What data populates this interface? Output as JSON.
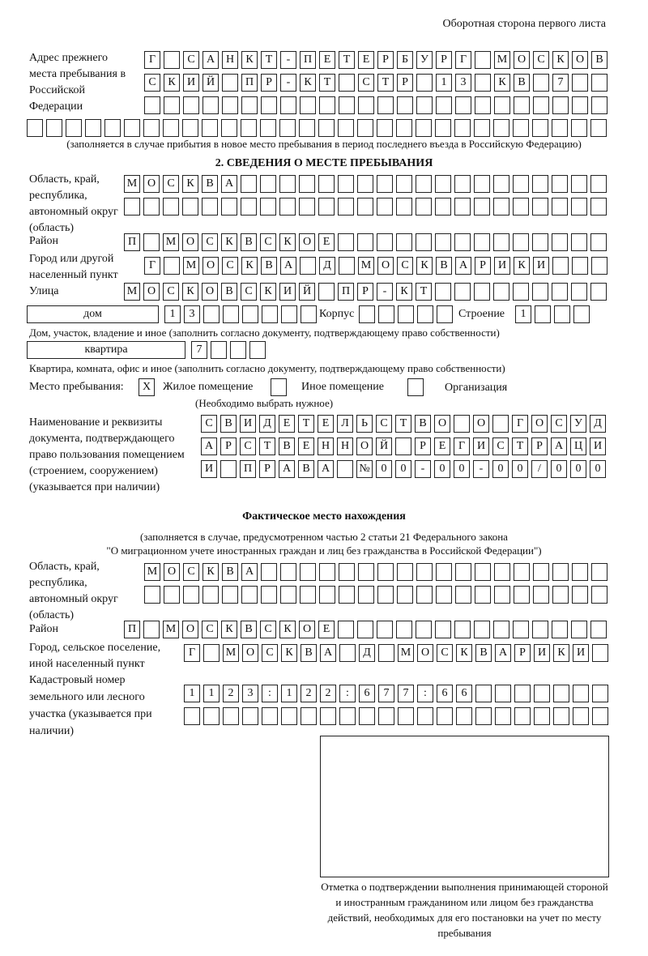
{
  "header": "Оборотная сторона первого листа",
  "prev_address": {
    "label": "Адрес прежнего места пребывания в Российской Федерации",
    "rows": [
      [
        "Г",
        "",
        "С",
        "А",
        "Н",
        "К",
        "Т",
        "-",
        "П",
        "Е",
        "Т",
        "Е",
        "Р",
        "Б",
        "У",
        "Р",
        "Г",
        "",
        "М",
        "О",
        "С",
        "К",
        "О",
        "В"
      ],
      [
        "С",
        "К",
        "И",
        "Й",
        "",
        "П",
        "Р",
        "-",
        "К",
        "Т",
        "",
        "С",
        "Т",
        "Р",
        "",
        "1",
        "3",
        "",
        "К",
        "В",
        "",
        "7",
        "",
        ""
      ],
      [
        "",
        "",
        "",
        "",
        "",
        "",
        "",
        "",
        "",
        "",
        "",
        "",
        "",
        "",
        "",
        "",
        "",
        "",
        "",
        "",
        "",
        "",
        "",
        ""
      ],
      [
        "",
        "",
        "",
        "",
        "",
        "",
        "",
        "",
        "",
        "",
        "",
        "",
        "",
        "",
        "",
        "",
        "",
        "",
        "",
        "",
        "",
        "",
        "",
        "",
        "",
        "",
        "",
        "",
        "",
        ""
      ]
    ],
    "note": "(заполняется в случае прибытия в новое место пребывания в период последнего въезда в Российскую Федерацию)"
  },
  "section2": {
    "title": "2. СВЕДЕНИЯ О МЕСТЕ ПРЕБЫВАНИЯ",
    "region_label": "Область, край, республика, автономный округ (область)",
    "region_rows": [
      [
        "М",
        "О",
        "С",
        "К",
        "В",
        "А",
        "",
        "",
        "",
        "",
        "",
        "",
        "",
        "",
        "",
        "",
        "",
        "",
        "",
        "",
        "",
        "",
        "",
        "",
        ""
      ],
      [
        "",
        "",
        "",
        "",
        "",
        "",
        "",
        "",
        "",
        "",
        "",
        "",
        "",
        "",
        "",
        "",
        "",
        "",
        "",
        "",
        "",
        "",
        "",
        "",
        ""
      ]
    ],
    "district_label": "Район",
    "district": [
      "П",
      "",
      "М",
      "О",
      "С",
      "К",
      "В",
      "С",
      "К",
      "О",
      "Е",
      "",
      "",
      "",
      "",
      "",
      "",
      "",
      "",
      "",
      "",
      "",
      "",
      "",
      ""
    ],
    "city_label": "Город или другой населенный пункт",
    "city": [
      "Г",
      "",
      "М",
      "О",
      "С",
      "К",
      "В",
      "А",
      "",
      "Д",
      "",
      "М",
      "О",
      "С",
      "К",
      "В",
      "А",
      "Р",
      "И",
      "К",
      "И",
      "",
      "",
      ""
    ],
    "street_label": "Улица",
    "street": [
      "М",
      "О",
      "С",
      "К",
      "О",
      "В",
      "С",
      "К",
      "И",
      "Й",
      "",
      "П",
      "Р",
      "-",
      "К",
      "Т",
      "",
      "",
      "",
      "",
      "",
      "",
      "",
      "",
      ""
    ],
    "house_type": "дом",
    "house": [
      "1",
      "3",
      "",
      "",
      "",
      "",
      "",
      ""
    ],
    "korpus_label": "Корпус",
    "korpus": [
      "",
      "",
      "",
      "",
      ""
    ],
    "building_label": "Строение",
    "building": [
      "1",
      "",
      "",
      ""
    ],
    "house_note": "Дом, участок, владение и иное (заполнить согласно документу, подтверждающему право собственности)",
    "flat_type": "квартира",
    "flat": [
      "7",
      "",
      "",
      ""
    ],
    "flat_note": "Квартира, комната, офис и иное (заполнить согласно документу, подтверждающему право собственности)",
    "stay_label": "Место пребывания:",
    "options": [
      {
        "label": "Жилое помещение",
        "mark": "X"
      },
      {
        "label": "Иное помещение",
        "mark": ""
      },
      {
        "label": "Организация",
        "mark": ""
      }
    ],
    "choose_note": "(Необходимо выбрать нужное)",
    "doc_label": "Наименование и реквизиты документа, подтверждающего право пользования помещением (строением, сооружением) (указывается при наличии)",
    "doc_rows": [
      [
        "С",
        "В",
        "И",
        "Д",
        "Е",
        "Т",
        "Е",
        "Л",
        "Ь",
        "С",
        "Т",
        "В",
        "О",
        "",
        "О",
        "",
        "Г",
        "О",
        "С",
        "У",
        "Д"
      ],
      [
        "А",
        "Р",
        "С",
        "Т",
        "В",
        "Е",
        "Н",
        "Н",
        "О",
        "Й",
        "",
        "Р",
        "Е",
        "Г",
        "И",
        "С",
        "Т",
        "Р",
        "А",
        "Ц",
        "И"
      ],
      [
        "И",
        "",
        "П",
        "Р",
        "А",
        "В",
        "А",
        "",
        "№",
        "0",
        "0",
        "-",
        "0",
        "0",
        "-",
        "0",
        "0",
        "/",
        "0",
        "0",
        "0"
      ]
    ]
  },
  "actual": {
    "title": "Фактическое место нахождения",
    "note1": "(заполняется в случае, предусмотренном частью 2 статьи 21 Федерального закона",
    "note2": "\"О миграционном учете иностранных граждан и лиц без гражданства в Российской Федерации\")",
    "region_label": "Область, край, республика, автономный округ (область)",
    "region_rows": [
      [
        "М",
        "О",
        "С",
        "К",
        "В",
        "А",
        "",
        "",
        "",
        "",
        "",
        "",
        "",
        "",
        "",
        "",
        "",
        "",
        "",
        "",
        "",
        "",
        "",
        ""
      ],
      [
        "",
        "",
        "",
        "",
        "",
        "",
        "",
        "",
        "",
        "",
        "",
        "",
        "",
        "",
        "",
        "",
        "",
        "",
        "",
        "",
        "",
        "",
        "",
        ""
      ]
    ],
    "district_label": "Район",
    "district": [
      "П",
      "",
      "М",
      "О",
      "С",
      "К",
      "В",
      "С",
      "К",
      "О",
      "Е",
      "",
      "",
      "",
      "",
      "",
      "",
      "",
      "",
      "",
      "",
      "",
      "",
      "",
      ""
    ],
    "city_label": "Город, сельское поселение, иной населенный пункт",
    "city": [
      "Г",
      "",
      "М",
      "О",
      "С",
      "К",
      "В",
      "А",
      "",
      "Д",
      "",
      "М",
      "О",
      "С",
      "К",
      "В",
      "А",
      "Р",
      "И",
      "К",
      "И",
      ""
    ],
    "cadastral_label": "Кадастровый номер земельного или лесного участка (указывается при наличии)",
    "cadastral_rows": [
      [
        "1",
        "1",
        "2",
        "3",
        ":",
        "1",
        "2",
        "2",
        ":",
        "6",
        "7",
        "7",
        ":",
        "6",
        "6",
        "",
        "",
        "",
        "",
        "",
        "",
        ""
      ],
      [
        "",
        "",
        "",
        "",
        "",
        "",
        "",
        "",
        "",
        "",
        "",
        "",
        "",
        "",
        "",
        "",
        "",
        "",
        "",
        "",
        "",
        ""
      ]
    ]
  },
  "stamp_caption": "Отметка о подтверждении выполнения принимающей стороной и иностранным гражданином или лицом без гражданства действий, необходимых для его постановки на учет по месту пребывания"
}
